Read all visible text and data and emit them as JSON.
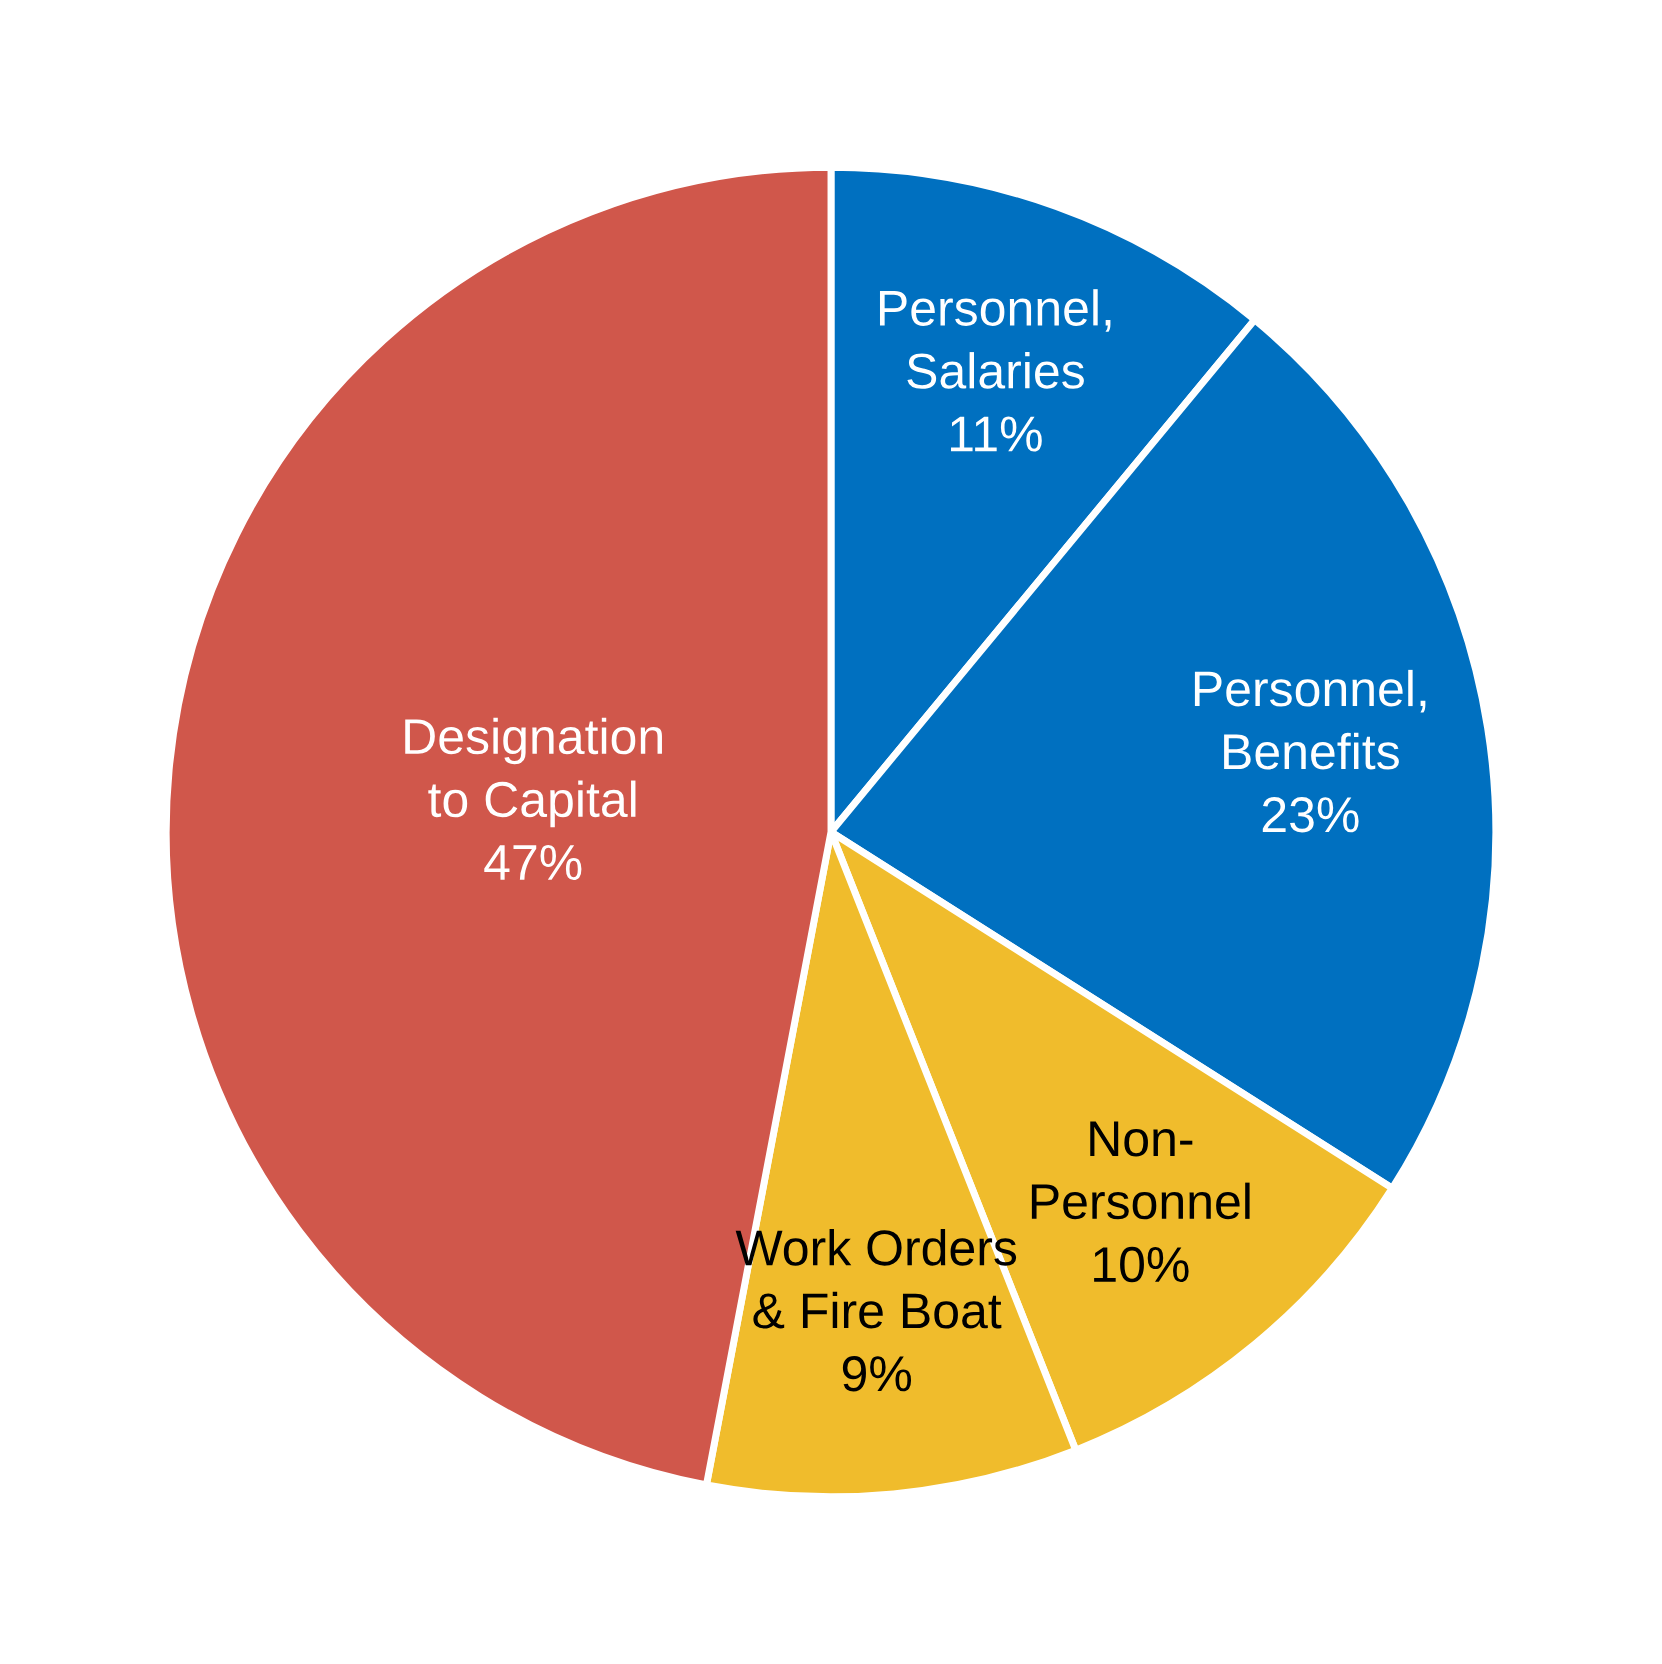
{
  "chart_data": {
    "type": "pie",
    "categories": [
      "Personnel,\nSalaries",
      "Personnel,\nBenefits",
      "Non-\nPersonnel",
      "Work Orders\n& Fire Boat",
      "Designation\nto Capital"
    ],
    "values": [
      11,
      23,
      10,
      9,
      47
    ],
    "value_labels": [
      "11%",
      "23%",
      "10%",
      "9%",
      "47%"
    ],
    "colors": [
      "#0070c0",
      "#0070c0",
      "#f0bc2c",
      "#f0bc2c",
      "#d0574b"
    ]
  }
}
